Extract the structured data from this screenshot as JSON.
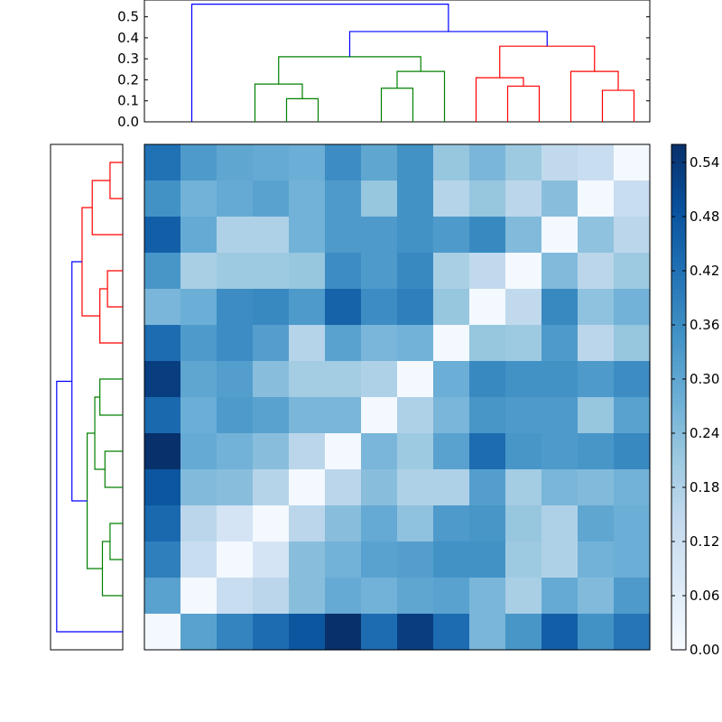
{
  "chart_data": [
    {
      "type": "dendrogram",
      "orientation": "top",
      "ylim": [
        0,
        0.58
      ],
      "yticks": [
        "0.0",
        "0.1",
        "0.2",
        "0.3",
        "0.4",
        "0.5"
      ],
      "leaf_count": 14,
      "links": [
        {
          "a": 4.5,
          "b": 5.5,
          "h": 0.11,
          "ha": 0,
          "hb": 0,
          "color": "#008000"
        },
        {
          "a": 3.5,
          "b": 5.0,
          "h": 0.18,
          "ha": 0,
          "hb": 0.11,
          "color": "#008000"
        },
        {
          "a": 7.5,
          "b": 8.5,
          "h": 0.16,
          "ha": 0,
          "hb": 0,
          "color": "#008000"
        },
        {
          "a": 8.0,
          "b": 9.5,
          "h": 0.24,
          "ha": 0.16,
          "hb": 0,
          "color": "#008000"
        },
        {
          "a": 4.25,
          "b": 8.75,
          "h": 0.31,
          "ha": 0.18,
          "hb": 0.24,
          "color": "#008000"
        },
        {
          "a": 11.5,
          "b": 12.5,
          "h": 0.17,
          "ha": 0,
          "hb": 0,
          "color": "#ff0000"
        },
        {
          "a": 10.5,
          "b": 12.0,
          "h": 0.21,
          "ha": 0,
          "hb": 0.17,
          "color": "#ff0000"
        },
        {
          "a": 14.5,
          "b": 15.5,
          "h": 0.15,
          "ha": 0,
          "hb": 0,
          "color": "#ff0000"
        },
        {
          "a": 13.5,
          "b": 15.0,
          "h": 0.24,
          "ha": 0,
          "hb": 0.15,
          "color": "#ff0000"
        },
        {
          "a": 11.25,
          "b": 14.25,
          "h": 0.36,
          "ha": 0.21,
          "hb": 0.24,
          "color": "#ff0000"
        },
        {
          "a": 6.5,
          "b": 12.75,
          "h": 0.43,
          "ha": 0.31,
          "hb": 0.36,
          "color": "#0000ff"
        },
        {
          "a": 1.5,
          "b": 9.625,
          "h": 0.56,
          "ha": 0,
          "hb": 0.43,
          "color": "#0000ff"
        }
      ]
    },
    {
      "type": "dendrogram",
      "orientation": "left",
      "xlim": [
        0,
        0.6
      ],
      "leaf_count": 14,
      "links": [
        {
          "a": 0.5,
          "b": 1.5,
          "h": 0.05,
          "ha": 0,
          "hb": 0,
          "color": "#ff0000"
        },
        {
          "a": 1.0,
          "b": 2.5,
          "h": 0.12,
          "ha": 0.05,
          "hb": 0,
          "color": "#ff0000"
        },
        {
          "a": 3.5,
          "b": 4.5,
          "h": 0.06,
          "ha": 0,
          "hb": 0,
          "color": "#ff0000"
        },
        {
          "a": 4.0,
          "b": 5.5,
          "h": 0.09,
          "ha": 0.06,
          "hb": 0,
          "color": "#ff0000"
        },
        {
          "a": 1.75,
          "b": 4.75,
          "h": 0.16,
          "ha": 0.12,
          "hb": 0.09,
          "color": "#ff0000"
        },
        {
          "a": 6.5,
          "b": 7.5,
          "h": 0.09,
          "ha": 0,
          "hb": 0,
          "color": "#008000"
        },
        {
          "a": 8.5,
          "b": 9.5,
          "h": 0.07,
          "ha": 0,
          "hb": 0,
          "color": "#008000"
        },
        {
          "a": 7.0,
          "b": 9.0,
          "h": 0.11,
          "ha": 0.09,
          "hb": 0.07,
          "color": "#008000"
        },
        {
          "a": 10.5,
          "b": 11.5,
          "h": 0.05,
          "ha": 0,
          "hb": 0,
          "color": "#008000"
        },
        {
          "a": 11.0,
          "b": 12.5,
          "h": 0.08,
          "ha": 0.05,
          "hb": 0,
          "color": "#008000"
        },
        {
          "a": 8.0,
          "b": 11.75,
          "h": 0.14,
          "ha": 0.11,
          "hb": 0.08,
          "color": "#008000"
        },
        {
          "a": 3.25,
          "b": 9.875,
          "h": 0.2,
          "ha": 0.16,
          "hb": 0.14,
          "color": "#0000ff"
        },
        {
          "a": 6.5625,
          "b": 13.5,
          "h": 0.26,
          "ha": 0.2,
          "hb": 0,
          "color": "#0000ff"
        }
      ]
    },
    {
      "type": "heatmap",
      "rows": 14,
      "cols": 14,
      "vmin": 0,
      "vmax": 0.56,
      "colormap": "Blues",
      "values": [
        [
          0.42,
          0.33,
          0.3,
          0.29,
          0.28,
          0.36,
          0.3,
          0.35,
          0.22,
          0.26,
          0.21,
          0.15,
          0.13,
          0.01
        ],
        [
          0.35,
          0.27,
          0.29,
          0.31,
          0.27,
          0.33,
          0.22,
          0.35,
          0.17,
          0.22,
          0.16,
          0.24,
          0.01,
          0.13
        ],
        [
          0.46,
          0.29,
          0.18,
          0.18,
          0.27,
          0.33,
          0.33,
          0.35,
          0.33,
          0.37,
          0.25,
          0.01,
          0.23,
          0.16
        ],
        [
          0.34,
          0.19,
          0.21,
          0.21,
          0.22,
          0.36,
          0.33,
          0.37,
          0.19,
          0.15,
          0.01,
          0.25,
          0.16,
          0.21
        ],
        [
          0.26,
          0.28,
          0.36,
          0.37,
          0.33,
          0.45,
          0.36,
          0.39,
          0.22,
          0.01,
          0.15,
          0.37,
          0.23,
          0.27
        ],
        [
          0.43,
          0.33,
          0.36,
          0.32,
          0.17,
          0.31,
          0.26,
          0.27,
          0.01,
          0.22,
          0.21,
          0.33,
          0.16,
          0.22
        ],
        [
          0.53,
          0.3,
          0.32,
          0.24,
          0.2,
          0.2,
          0.18,
          0.01,
          0.28,
          0.37,
          0.35,
          0.35,
          0.33,
          0.36
        ],
        [
          0.44,
          0.28,
          0.33,
          0.31,
          0.26,
          0.26,
          0.01,
          0.18,
          0.26,
          0.34,
          0.33,
          0.33,
          0.22,
          0.31
        ],
        [
          0.56,
          0.29,
          0.27,
          0.24,
          0.16,
          0.01,
          0.26,
          0.21,
          0.31,
          0.43,
          0.34,
          0.33,
          0.34,
          0.37
        ],
        [
          0.48,
          0.25,
          0.24,
          0.17,
          0.01,
          0.16,
          0.24,
          0.18,
          0.18,
          0.32,
          0.2,
          0.26,
          0.25,
          0.27
        ],
        [
          0.44,
          0.16,
          0.1,
          0.01,
          0.16,
          0.24,
          0.29,
          0.23,
          0.33,
          0.34,
          0.22,
          0.18,
          0.3,
          0.28
        ],
        [
          0.39,
          0.13,
          0.01,
          0.1,
          0.24,
          0.27,
          0.31,
          0.32,
          0.35,
          0.35,
          0.21,
          0.18,
          0.27,
          0.28
        ],
        [
          0.31,
          0.01,
          0.13,
          0.16,
          0.24,
          0.29,
          0.27,
          0.3,
          0.31,
          0.26,
          0.19,
          0.29,
          0.25,
          0.33
        ],
        [
          0.01,
          0.31,
          0.38,
          0.43,
          0.48,
          0.56,
          0.43,
          0.53,
          0.43,
          0.26,
          0.34,
          0.46,
          0.35,
          0.41
        ]
      ]
    },
    {
      "type": "colorbar",
      "vmin": 0,
      "vmax": 0.56,
      "ticks": [
        0.0,
        0.06,
        0.12,
        0.18,
        0.24,
        0.3,
        0.36,
        0.42,
        0.48,
        0.54
      ],
      "tick_labels": [
        "0.00",
        "0.06",
        "0.12",
        "0.18",
        "0.24",
        "0.30",
        "0.36",
        "0.42",
        "0.48",
        "0.54"
      ]
    }
  ]
}
